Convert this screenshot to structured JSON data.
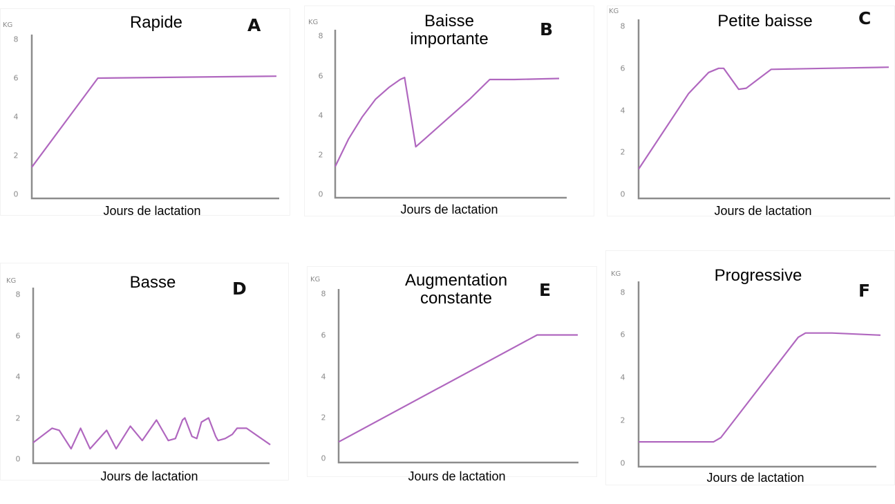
{
  "colors": {
    "line": "#B067BF",
    "axis": "#8c8c8c",
    "tick": "#8a8a8a"
  },
  "chart_data": [
    {
      "id": "A",
      "type": "line",
      "title": "Rapide",
      "letter": "A",
      "xlabel": "Jours de lactation",
      "ylabel": "KG",
      "yticks": [
        "8",
        "6",
        "4",
        "2",
        "0"
      ],
      "ylim": [
        0,
        8
      ],
      "xlim": [
        0,
        100
      ],
      "x": [
        0,
        27,
        100
      ],
      "values": [
        1.4,
        6.0,
        6.1
      ]
    },
    {
      "id": "B",
      "type": "line",
      "title": "Baisse importante",
      "title_lines": [
        "Baisse",
        "importante"
      ],
      "letter": "B",
      "xlabel": "Jours de lactation",
      "ylabel": "KG",
      "yticks": [
        "8",
        "6",
        "4",
        "2",
        "0"
      ],
      "ylim": [
        0,
        8
      ],
      "xlim": [
        0,
        100
      ],
      "x": [
        0,
        6,
        12,
        18,
        24,
        29,
        31,
        33,
        36,
        40,
        50,
        60,
        69,
        80,
        100
      ],
      "values": [
        1.4,
        2.8,
        3.9,
        4.8,
        5.4,
        5.8,
        5.9,
        4.5,
        2.4,
        2.8,
        3.8,
        4.8,
        5.8,
        5.8,
        5.85
      ]
    },
    {
      "id": "C",
      "type": "line",
      "title": "Petite baisse",
      "letter": "C",
      "xlabel": "Jours de lactation",
      "ylabel": "KG",
      "yticks": [
        "8",
        "6",
        "4",
        "2",
        "0"
      ],
      "ylim": [
        0,
        8
      ],
      "xlim": [
        0,
        100
      ],
      "x": [
        0,
        10,
        20,
        28,
        32,
        34,
        40,
        43,
        48,
        53,
        75,
        100
      ],
      "values": [
        1.2,
        3.0,
        4.8,
        5.8,
        6.0,
        6.0,
        5.0,
        5.05,
        5.5,
        5.95,
        6.0,
        6.05
      ]
    },
    {
      "id": "D",
      "type": "line",
      "title": "Basse",
      "letter": "D",
      "xlabel": "Jours de lactation",
      "ylabel": "KG",
      "yticks": [
        "8",
        "6",
        "4",
        "2",
        "0"
      ],
      "ylim": [
        0,
        8
      ],
      "xlim": [
        0,
        100
      ],
      "x": [
        0,
        8,
        11,
        16,
        20,
        24,
        31,
        35,
        41,
        46,
        52,
        57,
        60,
        63,
        64,
        67,
        69,
        71,
        74,
        77,
        78,
        81,
        84,
        86,
        90,
        95,
        100
      ],
      "values": [
        0.8,
        1.5,
        1.4,
        0.5,
        1.5,
        0.5,
        1.4,
        0.5,
        1.6,
        0.9,
        1.9,
        0.9,
        1.0,
        1.9,
        2.0,
        1.1,
        1.0,
        1.8,
        2.0,
        1.1,
        0.9,
        1.0,
        1.2,
        1.5,
        1.5,
        1.1,
        0.7
      ]
    },
    {
      "id": "E",
      "type": "line",
      "title": "Augmentation constante",
      "title_lines": [
        "Augmentation",
        "constante"
      ],
      "letter": "E",
      "xlabel": "Jours de lactation",
      "ylabel": "KG",
      "yticks": [
        "8",
        "6",
        "4",
        "2",
        "0"
      ],
      "ylim": [
        0,
        8
      ],
      "xlim": [
        0,
        100
      ],
      "x": [
        0,
        83,
        100
      ],
      "values": [
        0.8,
        6.0,
        6.0
      ]
    },
    {
      "id": "F",
      "type": "line",
      "title": "Progressive",
      "letter": "F",
      "xlabel": "Jours de lactation",
      "ylabel": "KG",
      "yticks": [
        "8",
        "6",
        "4",
        "2",
        "0"
      ],
      "ylim": [
        0,
        8
      ],
      "xlim": [
        0,
        100
      ],
      "x": [
        0,
        31,
        34,
        66,
        69,
        80,
        100
      ],
      "values": [
        1.0,
        1.0,
        1.2,
        5.9,
        6.1,
        6.1,
        6.0
      ]
    }
  ]
}
